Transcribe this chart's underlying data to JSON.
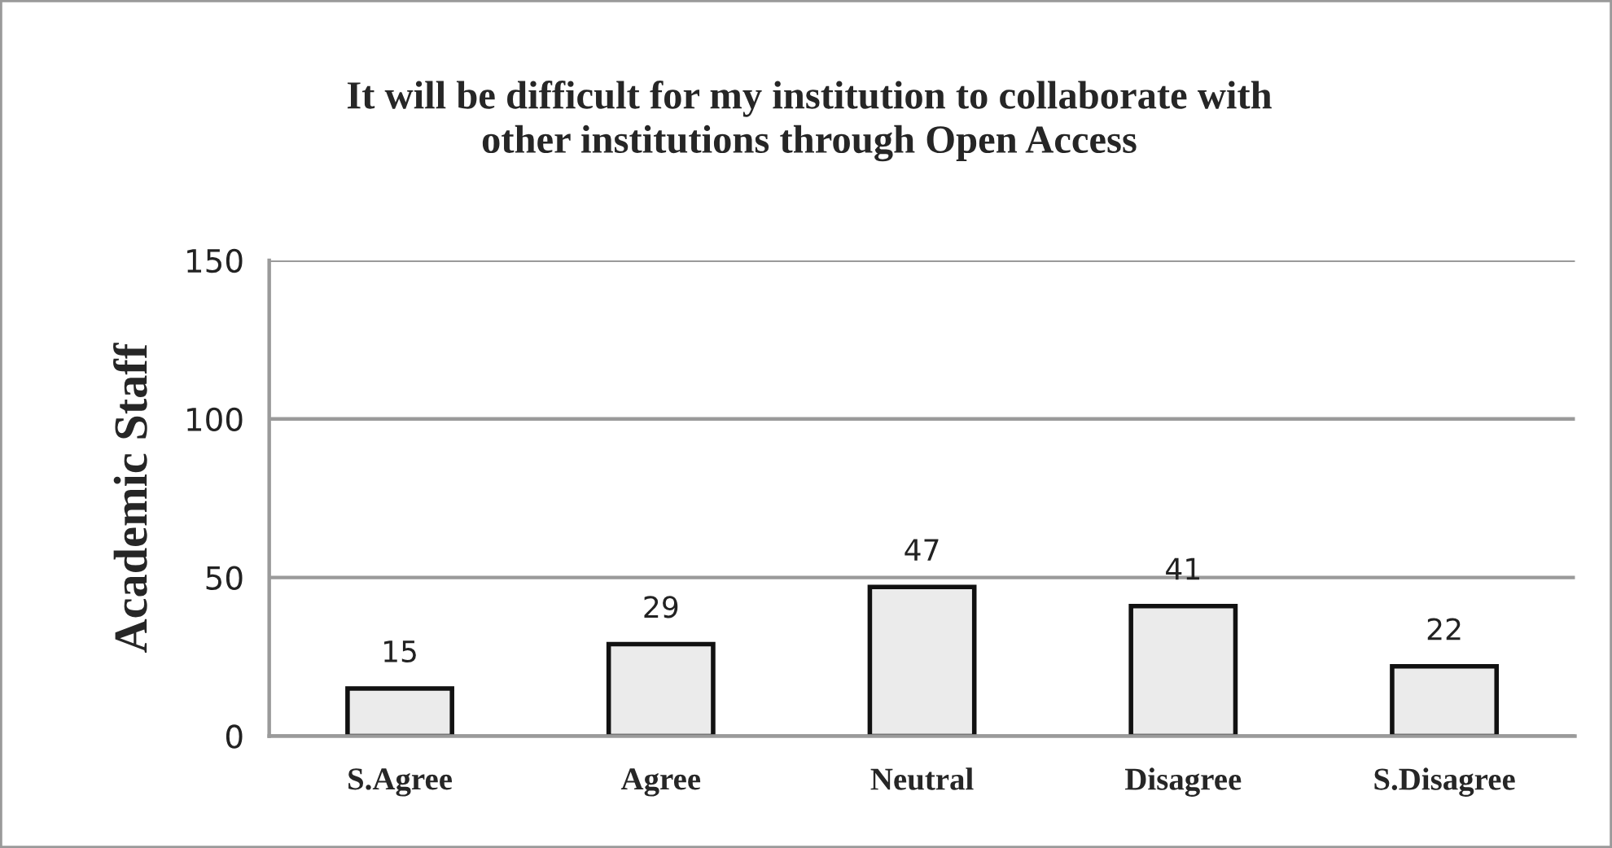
{
  "chart_data": {
    "type": "bar",
    "title": "It will be difficult for my institution to collaborate with\nother institutions through Open Access",
    "ylabel": "Academic Staff",
    "categories": [
      "S.Agree",
      "Agree",
      "Neutral",
      "Disagree",
      "S.Disagree"
    ],
    "values": [
      15,
      29,
      47,
      41,
      22
    ],
    "color": "#ebebeb",
    "ylim": [
      0,
      150
    ],
    "yticks": [
      0,
      50,
      100,
      150
    ],
    "grid": "y",
    "data_labels": true
  }
}
